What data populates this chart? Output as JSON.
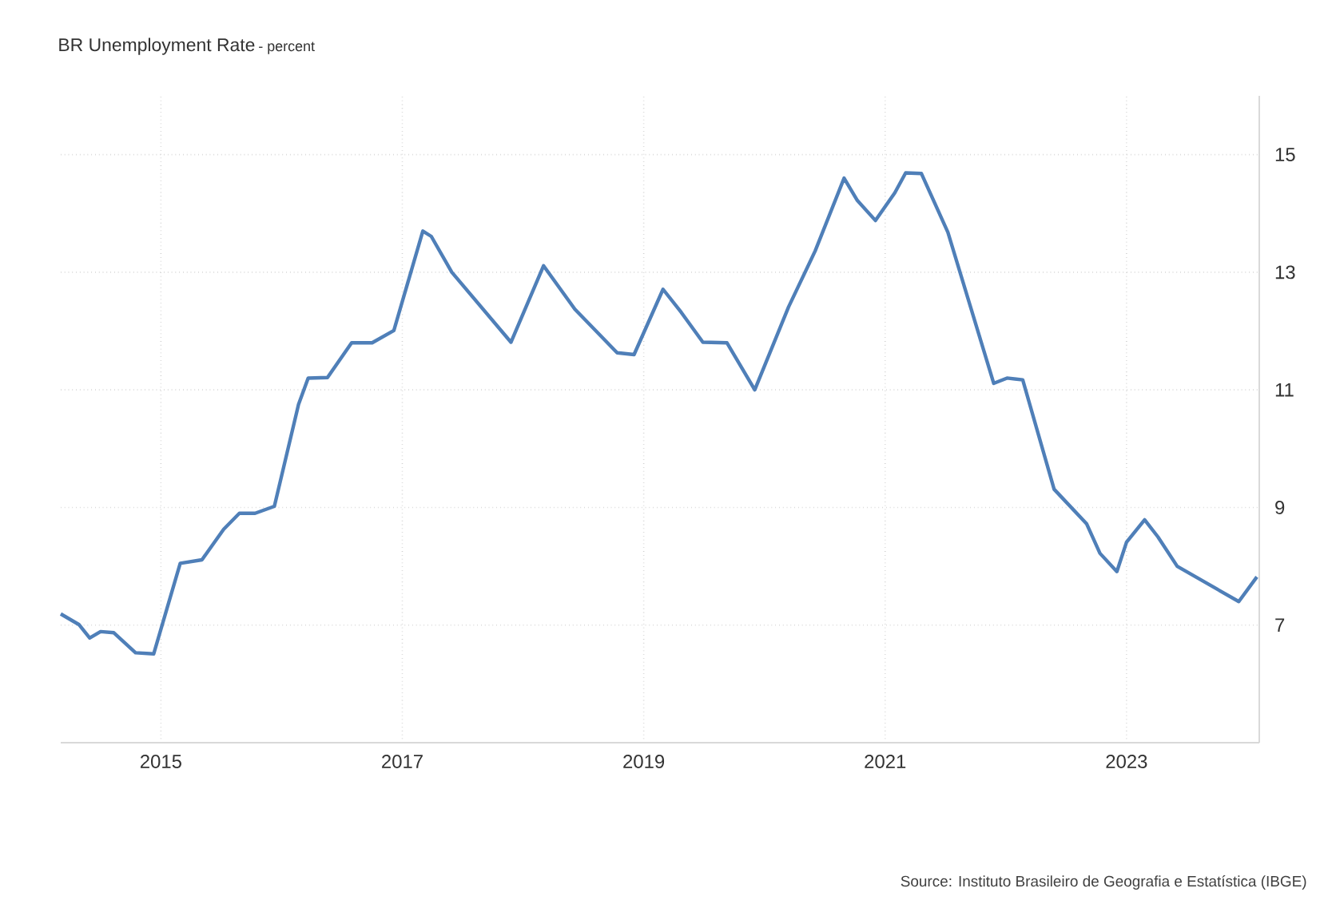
{
  "chart_data": {
    "type": "line",
    "title": "BR Unemployment Rate",
    "subtitle": "- percent",
    "annotations": [
      "Source: Instituto Brasileiro de Geografia e Estatística (IBGE)"
    ],
    "x": [
      2014.17,
      2014.32,
      2014.41,
      2014.5,
      2014.61,
      2014.79,
      2014.94,
      2015.16,
      2015.34,
      2015.52,
      2015.65,
      2015.78,
      2015.94,
      2016.14,
      2016.22,
      2016.38,
      2016.58,
      2016.75,
      2016.93,
      2017.17,
      2017.24,
      2017.41,
      2017.9,
      2018.17,
      2018.43,
      2018.78,
      2018.92,
      2019.16,
      2019.31,
      2019.49,
      2019.69,
      2019.92,
      2020.2,
      2020.42,
      2020.66,
      2020.77,
      2020.92,
      2021.08,
      2021.17,
      2021.3,
      2021.52,
      2021.9,
      2022.01,
      2022.14,
      2022.4,
      2022.67,
      2022.78,
      2022.92,
      2023.0,
      2023.15,
      2023.26,
      2023.42,
      2023.93,
      2024.08
    ],
    "series": [
      {
        "color": "#4f7fb8",
        "values": [
          7.19,
          7.01,
          6.78,
          6.89,
          6.87,
          6.53,
          6.51,
          8.05,
          8.11,
          8.63,
          8.9,
          8.9,
          9.02,
          10.75,
          11.2,
          11.21,
          11.8,
          11.8,
          12.01,
          13.7,
          13.61,
          13.0,
          11.81,
          13.11,
          12.37,
          11.63,
          11.6,
          12.71,
          12.32,
          11.81,
          11.8,
          11.0,
          12.41,
          13.36,
          14.6,
          14.22,
          13.88,
          14.35,
          14.69,
          14.68,
          13.68,
          11.11,
          11.2,
          11.17,
          9.31,
          8.72,
          8.22,
          7.91,
          8.41,
          8.79,
          8.5,
          8.0,
          7.4,
          7.82
        ]
      }
    ],
    "xlim": [
      2014.17,
      2024.1
    ],
    "ylim": [
      5,
      16
    ],
    "xticks": [
      2015,
      2017,
      2019,
      2021,
      2023
    ],
    "yticks": [
      7,
      9,
      11,
      13,
      15
    ],
    "grid": true,
    "line_style": "solid"
  }
}
